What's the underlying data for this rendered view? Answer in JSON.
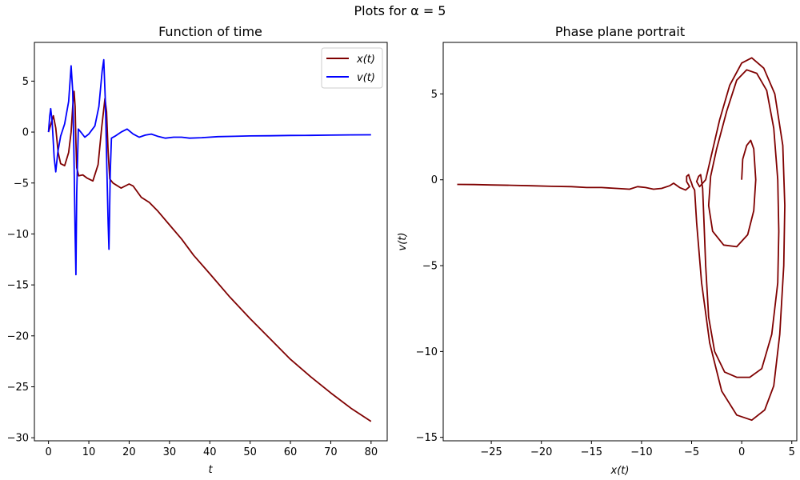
{
  "figure": {
    "suptitle": "Plots for α = 5"
  },
  "colors": {
    "x_series": "#7f0000",
    "v_series": "#0000ff",
    "axes": "#000000",
    "background": "#ffffff"
  },
  "chart_data": [
    {
      "type": "line",
      "title": "Function of time",
      "xlabel": "t",
      "ylabel": "",
      "xlim": [
        -3.5,
        84
      ],
      "ylim": [
        -30.3,
        8.8
      ],
      "xticks": [
        0,
        10,
        20,
        30,
        40,
        50,
        60,
        70,
        80
      ],
      "yticks": [
        5,
        0,
        -5,
        -10,
        -15,
        -20,
        -25,
        -30
      ],
      "xtick_labels": [
        "0",
        "10",
        "20",
        "30",
        "40",
        "50",
        "60",
        "70",
        "80"
      ],
      "ytick_labels": [
        "5",
        "0",
        "−5",
        "−10",
        "−15",
        "−20",
        "−25",
        "−30"
      ],
      "grid": false,
      "legend_position": "top-right",
      "series": [
        {
          "name": "x(t)",
          "color": "#7f0000",
          "points": [
            [
              0,
              0
            ],
            [
              0.6,
              0.8
            ],
            [
              1.2,
              1.6
            ],
            [
              1.8,
              0.4
            ],
            [
              2.4,
              -2.0
            ],
            [
              3,
              -3.1
            ],
            [
              4,
              -3.3
            ],
            [
              5,
              -2.0
            ],
            [
              5.6,
              0.0
            ],
            [
              6,
              2.5
            ],
            [
              6.35,
              4.0
            ],
            [
              6.6,
              2.5
            ],
            [
              6.8,
              -1.0
            ],
            [
              7,
              -3.5
            ],
            [
              7.5,
              -4.3
            ],
            [
              8.5,
              -4.2
            ],
            [
              9.5,
              -4.5
            ],
            [
              11,
              -4.8
            ],
            [
              12.3,
              -3.2
            ],
            [
              13.2,
              0.5
            ],
            [
              14,
              3.3
            ],
            [
              14.4,
              2.0
            ],
            [
              14.8,
              -2.0
            ],
            [
              15.2,
              -4.6
            ],
            [
              16,
              -5.0
            ],
            [
              18,
              -5.5
            ],
            [
              20,
              -5.1
            ],
            [
              21,
              -5.3
            ],
            [
              23,
              -6.4
            ],
            [
              25,
              -6.9
            ],
            [
              27,
              -7.7
            ],
            [
              30,
              -9.1
            ],
            [
              33,
              -10.5
            ],
            [
              36,
              -12.1
            ],
            [
              40,
              -13.9
            ],
            [
              45,
              -16.2
            ],
            [
              50,
              -18.3
            ],
            [
              55,
              -20.3
            ],
            [
              60,
              -22.3
            ],
            [
              65,
              -24.0
            ],
            [
              70,
              -25.6
            ],
            [
              75,
              -27.1
            ],
            [
              80,
              -28.4
            ]
          ]
        },
        {
          "name": "v(t)",
          "color": "#0000ff",
          "points": [
            [
              0,
              0
            ],
            [
              0.3,
              1.6
            ],
            [
              0.55,
              2.3
            ],
            [
              0.9,
              1.0
            ],
            [
              1.4,
              -2.5
            ],
            [
              1.8,
              -3.9
            ],
            [
              2.3,
              -2.0
            ],
            [
              3,
              -0.4
            ],
            [
              4,
              0.8
            ],
            [
              5,
              3.0
            ],
            [
              5.6,
              6.5
            ],
            [
              6,
              4.0
            ],
            [
              6.3,
              -2.0
            ],
            [
              6.6,
              -10.0
            ],
            [
              6.8,
              -14.0
            ],
            [
              7,
              -6.0
            ],
            [
              7.4,
              0.3
            ],
            [
              8,
              0.0
            ],
            [
              9,
              -0.5
            ],
            [
              10,
              -0.2
            ],
            [
              11.5,
              0.6
            ],
            [
              12.5,
              2.5
            ],
            [
              13.3,
              6.0
            ],
            [
              13.7,
              7.1
            ],
            [
              14.1,
              3.0
            ],
            [
              14.5,
              -4.0
            ],
            [
              14.8,
              -9.0
            ],
            [
              15,
              -11.5
            ],
            [
              15.3,
              -4.0
            ],
            [
              15.6,
              -0.6
            ],
            [
              16.5,
              -0.4
            ],
            [
              18,
              0.0
            ],
            [
              19.5,
              0.3
            ],
            [
              21,
              -0.2
            ],
            [
              22.5,
              -0.5
            ],
            [
              24,
              -0.3
            ],
            [
              25.5,
              -0.2
            ],
            [
              27,
              -0.4
            ],
            [
              29,
              -0.6
            ],
            [
              31,
              -0.5
            ],
            [
              33,
              -0.5
            ],
            [
              35,
              -0.6
            ],
            [
              38,
              -0.55
            ],
            [
              42,
              -0.45
            ],
            [
              46,
              -0.42
            ],
            [
              50,
              -0.38
            ],
            [
              55,
              -0.36
            ],
            [
              60,
              -0.33
            ],
            [
              65,
              -0.32
            ],
            [
              70,
              -0.3
            ],
            [
              75,
              -0.28
            ],
            [
              80,
              -0.27
            ]
          ]
        }
      ]
    },
    {
      "type": "line",
      "title": "Phase plane portrait",
      "xlabel": "x(t)",
      "ylabel": "v(t)",
      "xlim": [
        -29.8,
        5.5
      ],
      "ylim": [
        -15.2,
        8.0
      ],
      "xticks": [
        -25,
        -20,
        -15,
        -10,
        -5,
        0,
        5
      ],
      "yticks": [
        5,
        0,
        -5,
        -10,
        -15
      ],
      "xtick_labels": [
        "−25",
        "−20",
        "−15",
        "−10",
        "−5",
        "0",
        "5"
      ],
      "ytick_labels": [
        "5",
        "0",
        "−5",
        "−10",
        "−15"
      ],
      "grid": false,
      "legend_position": "none",
      "series": [
        {
          "color": "#7f0000",
          "points": [
            [
              0,
              0
            ],
            [
              0.1,
              1.2
            ],
            [
              0.5,
              2.0
            ],
            [
              0.9,
              2.3
            ],
            [
              1.2,
              1.8
            ],
            [
              1.4,
              0.0
            ],
            [
              1.2,
              -1.8
            ],
            [
              0.6,
              -3.2
            ],
            [
              -0.5,
              -3.9
            ],
            [
              -1.8,
              -3.8
            ],
            [
              -2.9,
              -3.0
            ],
            [
              -3.3,
              -1.5
            ],
            [
              -3.1,
              0.2
            ],
            [
              -2.5,
              1.8
            ],
            [
              -1.5,
              4.0
            ],
            [
              -0.5,
              5.8
            ],
            [
              0.5,
              6.4
            ],
            [
              1.5,
              6.2
            ],
            [
              2.5,
              5.2
            ],
            [
              3.2,
              3.0
            ],
            [
              3.6,
              0.0
            ],
            [
              3.7,
              -3.0
            ],
            [
              3.6,
              -6.0
            ],
            [
              3.0,
              -9.0
            ],
            [
              2.0,
              -11.0
            ],
            [
              0.8,
              -11.5
            ],
            [
              -0.5,
              -11.5
            ],
            [
              -1.7,
              -11.2
            ],
            [
              -2.7,
              -10.0
            ],
            [
              -3.3,
              -8.0
            ],
            [
              -3.6,
              -5.0
            ],
            [
              -3.8,
              -2.0
            ],
            [
              -3.9,
              -0.5
            ],
            [
              -4.1,
              0.3
            ],
            [
              -4.3,
              0.2
            ],
            [
              -4.5,
              -0.1
            ],
            [
              -4.2,
              -0.4
            ],
            [
              -3.6,
              0.0
            ],
            [
              -3.0,
              1.5
            ],
            [
              -2.2,
              3.5
            ],
            [
              -1.2,
              5.5
            ],
            [
              0.0,
              6.8
            ],
            [
              1.0,
              7.1
            ],
            [
              2.2,
              6.5
            ],
            [
              3.3,
              5.0
            ],
            [
              4.1,
              2.0
            ],
            [
              4.3,
              -1.5
            ],
            [
              4.2,
              -5.0
            ],
            [
              3.8,
              -9.0
            ],
            [
              3.2,
              -12.0
            ],
            [
              2.3,
              -13.4
            ],
            [
              1.0,
              -14.0
            ],
            [
              -0.5,
              -13.7
            ],
            [
              -2.0,
              -12.3
            ],
            [
              -3.2,
              -9.5
            ],
            [
              -4.0,
              -6.0
            ],
            [
              -4.5,
              -2.5
            ],
            [
              -4.7,
              -0.6
            ],
            [
              -4.9,
              -0.4
            ],
            [
              -5.0,
              -0.2
            ],
            [
              -5.2,
              0.1
            ],
            [
              -5.3,
              0.3
            ],
            [
              -5.5,
              0.2
            ],
            [
              -5.5,
              -0.1
            ],
            [
              -5.2,
              -0.4
            ],
            [
              -5.6,
              -0.6
            ],
            [
              -6.2,
              -0.45
            ],
            [
              -6.8,
              -0.2
            ],
            [
              -7.2,
              -0.35
            ],
            [
              -8,
              -0.5
            ],
            [
              -8.8,
              -0.55
            ],
            [
              -9.6,
              -0.45
            ],
            [
              -10.4,
              -0.4
            ],
            [
              -11.2,
              -0.55
            ],
            [
              -12.5,
              -0.5
            ],
            [
              -14,
              -0.45
            ],
            [
              -15.5,
              -0.45
            ],
            [
              -17,
              -0.4
            ],
            [
              -19,
              -0.38
            ],
            [
              -21,
              -0.35
            ],
            [
              -23,
              -0.32
            ],
            [
              -25,
              -0.3
            ],
            [
              -26.7,
              -0.28
            ],
            [
              -28.4,
              -0.27
            ]
          ]
        }
      ]
    }
  ]
}
